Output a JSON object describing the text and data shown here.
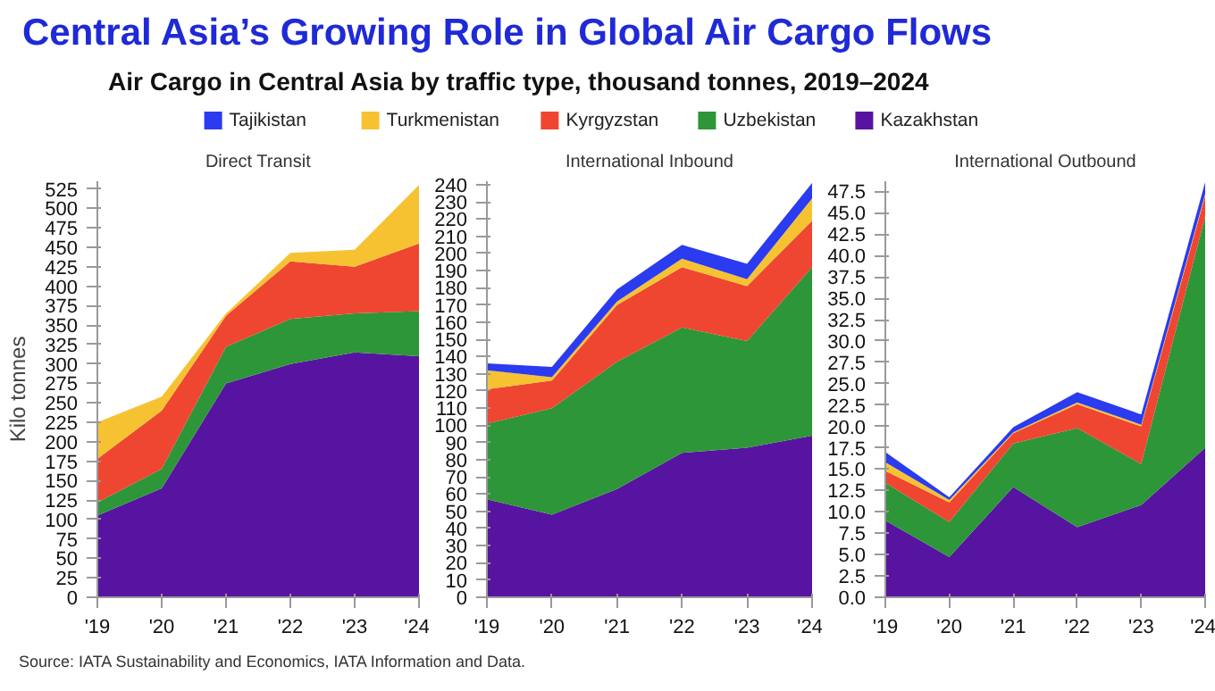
{
  "chart_data": [
    {
      "type": "other",
      "title": "Central Asia’s Growing Role in Global Air Cargo Flows",
      "subtitle": "Air Cargo in Central Asia by traffic type, thousand tonnes, 2019–2024",
      "annotations": [
        "Source: IATA Sustainability and Economics, IATA Information and Data."
      ]
    },
    {
      "type": "area",
      "stacked": true,
      "title": "Direct Transit",
      "ylabel": "Kilo tonnes",
      "grid": false,
      "x": [
        2019,
        2020,
        2021,
        2022,
        2023,
        2024
      ],
      "xlim": [
        2019,
        2024
      ],
      "xticks": [
        {
          "value": 2019,
          "label": "'19"
        },
        {
          "value": 2020,
          "label": "'20"
        },
        {
          "value": 2021,
          "label": "'21"
        },
        {
          "value": 2022,
          "label": "'22"
        },
        {
          "value": 2023,
          "label": "'23"
        },
        {
          "value": 2024,
          "label": "'24"
        }
      ],
      "ylim": [
        0,
        535
      ],
      "yticks": [
        0,
        25,
        50,
        75,
        100,
        125,
        150,
        175,
        200,
        225,
        250,
        275,
        300,
        325,
        350,
        375,
        400,
        425,
        450,
        475,
        500,
        525
      ],
      "series": [
        {
          "color": "#5714a0",
          "values": [
            105,
            140,
            275,
            300,
            315,
            310
          ]
        },
        {
          "color": "#2d9638",
          "values": [
            17,
            25,
            47,
            58,
            50,
            58
          ]
        },
        {
          "color": "#ee4630",
          "values": [
            56,
            75,
            40,
            74,
            60,
            87
          ]
        },
        {
          "color": "#f7c232",
          "values": [
            47,
            18,
            3,
            11,
            22,
            75
          ]
        }
      ]
    },
    {
      "type": "area",
      "stacked": true,
      "title": "International Inbound",
      "legend": "top",
      "grid": false,
      "x": [
        2019,
        2020,
        2021,
        2022,
        2023,
        2024
      ],
      "xlim": [
        2019,
        2024
      ],
      "xticks": [
        {
          "value": 2019,
          "label": "'19"
        },
        {
          "value": 2020,
          "label": "'20"
        },
        {
          "value": 2021,
          "label": "'21"
        },
        {
          "value": 2022,
          "label": "'22"
        },
        {
          "value": 2023,
          "label": "'23"
        },
        {
          "value": 2024,
          "label": "'24"
        }
      ],
      "ylim": [
        0,
        242
      ],
      "yticks": [
        0,
        10,
        20,
        30,
        40,
        50,
        60,
        70,
        80,
        90,
        100,
        110,
        120,
        130,
        140,
        150,
        160,
        170,
        180,
        190,
        200,
        210,
        220,
        230,
        240
      ],
      "series": [
        {
          "name": "Kazakhstan",
          "color": "#5714a0",
          "values": [
            57,
            48,
            63,
            84,
            87,
            94
          ]
        },
        {
          "name": "Uzbekistan",
          "color": "#2d9638",
          "values": [
            44,
            62,
            74,
            73,
            62,
            98
          ]
        },
        {
          "name": "Kyrgyzstan",
          "color": "#ee4630",
          "values": [
            20,
            16,
            33,
            35,
            32,
            27
          ]
        },
        {
          "name": "Turkmenistan",
          "color": "#f7c232",
          "values": [
            11,
            2,
            2,
            5,
            4,
            13
          ]
        },
        {
          "name": "Tajikistan",
          "color": "#2b3bef",
          "values": [
            4,
            6,
            7,
            8,
            9,
            9
          ]
        }
      ]
    },
    {
      "type": "area",
      "stacked": true,
      "title": "International Outbound",
      "grid": false,
      "x": [
        2019,
        2020,
        2021,
        2022,
        2023,
        2024
      ],
      "xlim": [
        2019,
        2024
      ],
      "xticks": [
        {
          "value": 2019,
          "label": "'19"
        },
        {
          "value": 2020,
          "label": "'20"
        },
        {
          "value": 2021,
          "label": "'21"
        },
        {
          "value": 2022,
          "label": "'22"
        },
        {
          "value": 2023,
          "label": "'23"
        },
        {
          "value": 2024,
          "label": "'24"
        }
      ],
      "ylim": [
        0,
        48.7
      ],
      "yticks": [
        {
          "value": 0,
          "label": "0.0"
        },
        2.5,
        {
          "value": 5,
          "label": "5.0"
        },
        7.5,
        {
          "value": 10,
          "label": "10.0"
        },
        12.5,
        {
          "value": 15,
          "label": "15.0"
        },
        17.5,
        {
          "value": 20,
          "label": "20.0"
        },
        22.5,
        {
          "value": 25,
          "label": "25.0"
        },
        27.5,
        {
          "value": 30,
          "label": "30.0"
        },
        32.5,
        {
          "value": 35,
          "label": "35.0"
        },
        37.5,
        {
          "value": 40,
          "label": "40.0"
        },
        42.5,
        {
          "value": 45,
          "label": "45.0"
        },
        47.5
      ],
      "series": [
        {
          "color": "#5714a0",
          "values": [
            9.0,
            4.7,
            12.9,
            8.2,
            10.8,
            17.5
          ]
        },
        {
          "color": "#2d9638",
          "values": [
            4.4,
            4.1,
            5.1,
            11.6,
            4.8,
            27.1
          ]
        },
        {
          "color": "#ee4630",
          "values": [
            1.4,
            2.3,
            1.2,
            2.8,
            4.4,
            2.4
          ]
        },
        {
          "color": "#f7c232",
          "values": [
            1.0,
            0.3,
            0.1,
            0.2,
            0.2,
            0.2
          ]
        },
        {
          "color": "#2b3bef",
          "values": [
            1.2,
            0.3,
            0.6,
            1.2,
            1.2,
            1.4
          ]
        }
      ]
    }
  ]
}
